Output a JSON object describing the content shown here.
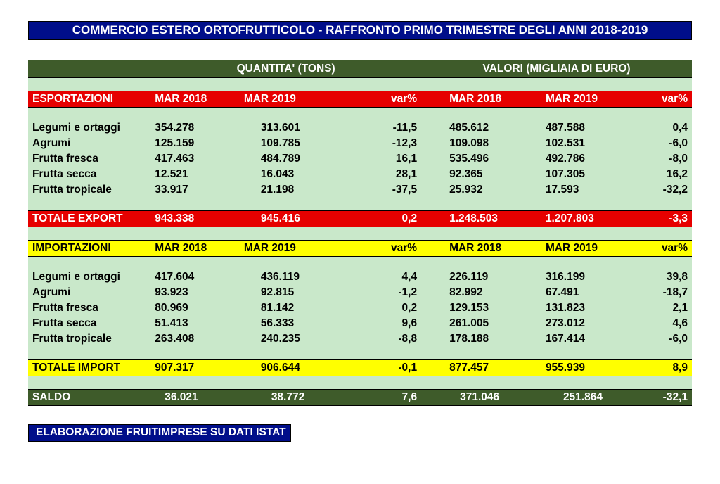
{
  "title": "COMMERCIO ESTERO ORTOFRUTTICOLO - RAFFRONTO PRIMO TRIMESTRE DEGLI ANNI 2018-2019",
  "groupHeaders": {
    "qty": "QUANTITA' (TONS)",
    "val": "VALORI (MIGLIAIA DI EURO)"
  },
  "colHeaders": {
    "c1": "MAR 2018",
    "c2": "MAR 2019",
    "c3": "var%",
    "c4": "MAR 2018",
    "c5": "MAR 2019",
    "c6": "var%"
  },
  "export": {
    "title": "ESPORTAZIONI",
    "rows": [
      {
        "label": "Legumi e ortaggi",
        "q1": "354.278",
        "q2": "313.601",
        "qv": "-11,5",
        "v1": "485.612",
        "v2": "487.588",
        "vv": "0,4"
      },
      {
        "label": "Agrumi",
        "q1": "125.159",
        "q2": "109.785",
        "qv": "-12,3",
        "v1": "109.098",
        "v2": "102.531",
        "vv": "-6,0"
      },
      {
        "label": "Frutta fresca",
        "q1": "417.463",
        "q2": "484.789",
        "qv": "16,1",
        "v1": "535.496",
        "v2": "492.786",
        "vv": "-8,0"
      },
      {
        "label": "Frutta secca",
        "q1": "12.521",
        "q2": "16.043",
        "qv": "28,1",
        "v1": "92.365",
        "v2": "107.305",
        "vv": "16,2"
      },
      {
        "label": "Frutta tropicale",
        "q1": "33.917",
        "q2": "21.198",
        "qv": "-37,5",
        "v1": "25.932",
        "v2": "17.593",
        "vv": "-32,2"
      }
    ],
    "total": {
      "label": "TOTALE EXPORT",
      "q1": "943.338",
      "q2": "945.416",
      "qv": "0,2",
      "v1": "1.248.503",
      "v2": "1.207.803",
      "vv": "-3,3"
    }
  },
  "import": {
    "title": "IMPORTAZIONI",
    "rows": [
      {
        "label": "Legumi e ortaggi",
        "q1": "417.604",
        "q2": "436.119",
        "qv": "4,4",
        "v1": "226.119",
        "v2": "316.199",
        "vv": "39,8"
      },
      {
        "label": "Agrumi",
        "q1": "93.923",
        "q2": "92.815",
        "qv": "-1,2",
        "v1": "82.992",
        "v2": "67.491",
        "vv": "-18,7"
      },
      {
        "label": "Frutta fresca",
        "q1": "80.969",
        "q2": "81.142",
        "qv": "0,2",
        "v1": "129.153",
        "v2": "131.823",
        "vv": "2,1"
      },
      {
        "label": "Frutta secca",
        "q1": "51.413",
        "q2": "56.333",
        "qv": "9,6",
        "v1": "261.005",
        "v2": "273.012",
        "vv": "4,6"
      },
      {
        "label": "Frutta tropicale",
        "q1": "263.408",
        "q2": "240.235",
        "qv": "-8,8",
        "v1": "178.188",
        "v2": "167.414",
        "vv": "-6,0"
      }
    ],
    "total": {
      "label": "TOTALE IMPORT",
      "q1": "907.317",
      "q2": "906.644",
      "qv": "-0,1",
      "v1": "877.457",
      "v2": "955.939",
      "vv": "8,9"
    }
  },
  "saldo": {
    "label": "SALDO",
    "q1": "36.021",
    "q2": "38.772",
    "qv": "7,6",
    "v1": "371.046",
    "v2": "251.864",
    "vv": "-32,1"
  },
  "footer": "ELABORAZIONE FRUITIMPRESE SU DATI ISTAT",
  "style": {
    "colors": {
      "titleBg": "#000e8a",
      "titleText": "#ffffff",
      "tableBg": "#c9e8ca",
      "groupBg": "#3e5b2a",
      "groupText": "#ffffff",
      "redBg": "#e60000",
      "redText": "#ffffff",
      "yellowBg": "#ffff00",
      "border": "#000000"
    },
    "fontFamily": "Arial",
    "baseFontSize": 15.5,
    "titleFontSize": 17
  }
}
